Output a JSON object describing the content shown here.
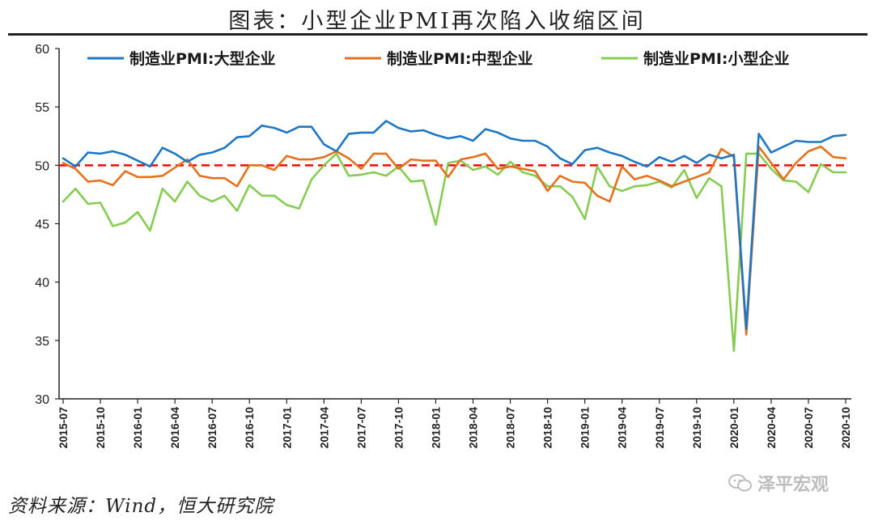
{
  "header": {
    "title": "图表：小型企业PMI再次陷入收缩区间"
  },
  "footer": {
    "source": "资料来源：Wind，恒大研究院",
    "watermark": "泽平宏观"
  },
  "chart_data": {
    "type": "line",
    "title": "图表：小型企业PMI再次陷入收缩区间",
    "xlabel": "",
    "ylabel": "",
    "ylim": [
      30,
      60
    ],
    "yticks": [
      30,
      35,
      40,
      45,
      50,
      55,
      60
    ],
    "legend_position": "top",
    "grid": false,
    "reference_line": {
      "value": 50,
      "color": "#ff0000",
      "style": "dashed"
    },
    "x": [
      "2015-07",
      "2015-08",
      "2015-09",
      "2015-10",
      "2015-11",
      "2015-12",
      "2016-01",
      "2016-02",
      "2016-03",
      "2016-04",
      "2016-05",
      "2016-06",
      "2016-07",
      "2016-08",
      "2016-09",
      "2016-10",
      "2016-11",
      "2016-12",
      "2017-01",
      "2017-02",
      "2017-03",
      "2017-04",
      "2017-05",
      "2017-06",
      "2017-07",
      "2017-08",
      "2017-09",
      "2017-10",
      "2017-11",
      "2017-12",
      "2018-01",
      "2018-02",
      "2018-03",
      "2018-04",
      "2018-05",
      "2018-06",
      "2018-07",
      "2018-08",
      "2018-09",
      "2018-10",
      "2018-11",
      "2018-12",
      "2019-01",
      "2019-02",
      "2019-03",
      "2019-04",
      "2019-05",
      "2019-06",
      "2019-07",
      "2019-08",
      "2019-09",
      "2019-10",
      "2019-11",
      "2019-12",
      "2020-01",
      "2020-02",
      "2020-03",
      "2020-04",
      "2020-05",
      "2020-06",
      "2020-07",
      "2020-08",
      "2020-09",
      "2020-10"
    ],
    "xtick_labels": [
      "2015-07",
      "2015-10",
      "2016-01",
      "2016-04",
      "2016-07",
      "2016-10",
      "2017-01",
      "2017-04",
      "2017-07",
      "2017-10",
      "2018-01",
      "2018-04",
      "2018-07",
      "2018-10",
      "2019-01",
      "2019-04",
      "2019-07",
      "2019-10",
      "2020-01",
      "2020-04",
      "2020-07",
      "2020-10"
    ],
    "series": [
      {
        "name": "制造业PMI:大型企业",
        "color": "#1f77c4",
        "values": [
          50.6,
          49.9,
          51.1,
          51.0,
          51.2,
          50.9,
          50.4,
          49.9,
          51.5,
          51.0,
          50.3,
          50.9,
          51.1,
          51.5,
          52.4,
          52.5,
          53.4,
          53.2,
          52.8,
          53.3,
          53.3,
          51.8,
          51.2,
          52.7,
          52.8,
          52.8,
          53.8,
          53.2,
          52.9,
          53.0,
          52.6,
          52.3,
          52.5,
          52.1,
          53.1,
          52.8,
          52.3,
          52.1,
          52.1,
          51.6,
          50.6,
          50.1,
          51.3,
          51.5,
          51.1,
          50.8,
          50.3,
          49.9,
          50.7,
          50.3,
          50.8,
          50.2,
          50.9,
          50.6,
          50.9,
          36.0,
          52.7,
          51.1,
          51.6,
          52.1,
          52.0,
          52.0,
          52.5,
          52.6
        ]
      },
      {
        "name": "制造业PMI:中型企业",
        "color": "#e5711e",
        "values": [
          50.2,
          49.7,
          48.6,
          48.7,
          48.3,
          49.5,
          49.0,
          49.0,
          49.1,
          49.8,
          50.5,
          49.1,
          48.9,
          48.9,
          48.2,
          50.0,
          50.0,
          49.6,
          50.8,
          50.5,
          50.5,
          50.7,
          51.2,
          50.6,
          49.7,
          51.0,
          51.0,
          49.7,
          50.5,
          50.4,
          50.4,
          49.0,
          50.5,
          50.7,
          51.0,
          49.7,
          49.9,
          49.7,
          49.5,
          47.8,
          49.1,
          48.6,
          48.5,
          47.4,
          46.9,
          49.9,
          48.8,
          49.1,
          48.7,
          48.2,
          48.6,
          49.0,
          49.4,
          51.4,
          50.7,
          35.5,
          51.6,
          50.2,
          48.8,
          50.2,
          51.2,
          51.6,
          50.7,
          50.6
        ]
      },
      {
        "name": "制造业PMI:小型企业",
        "color": "#86cc52",
        "values": [
          46.9,
          48.0,
          46.7,
          46.8,
          44.8,
          45.1,
          46.0,
          44.4,
          48.0,
          46.9,
          48.6,
          47.4,
          46.9,
          47.4,
          46.1,
          48.3,
          47.4,
          47.4,
          46.6,
          46.3,
          48.8,
          50.0,
          51.0,
          49.1,
          49.2,
          49.4,
          49.1,
          49.9,
          48.6,
          48.7,
          44.9,
          50.2,
          50.4,
          49.6,
          49.9,
          49.2,
          50.3,
          49.4,
          49.1,
          48.2,
          48.2,
          47.3,
          45.4,
          49.9,
          48.2,
          47.8,
          48.2,
          48.3,
          48.6,
          48.1,
          49.6,
          47.2,
          48.9,
          48.2,
          34.1,
          51.0,
          51.0,
          49.7,
          48.7,
          48.6,
          47.7,
          50.1,
          49.4,
          49.4
        ]
      }
    ]
  }
}
